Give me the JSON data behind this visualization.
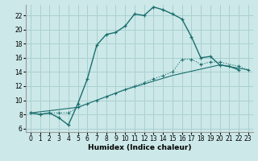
{
  "xlabel": "Humidex (Indice chaleur)",
  "bg_color": "#cce8e8",
  "grid_color": "#aad0d0",
  "line_color": "#1a6e6e",
  "line1_x": [
    0,
    1,
    2,
    3,
    4,
    5,
    6,
    7,
    8,
    9,
    10,
    11,
    12,
    13,
    14,
    15,
    16,
    17,
    18,
    19,
    20,
    21,
    22
  ],
  "line1_y": [
    8.2,
    8.0,
    8.2,
    7.5,
    6.5,
    9.5,
    13.0,
    17.8,
    19.3,
    19.6,
    20.5,
    22.2,
    22.0,
    23.2,
    22.8,
    22.2,
    21.5,
    19.0,
    16.0,
    16.2,
    15.0,
    14.8,
    14.3
  ],
  "line2_x": [
    0,
    1,
    2,
    3,
    4,
    5,
    6,
    7,
    8,
    9,
    10,
    11,
    12,
    13,
    14,
    15,
    16,
    17,
    18,
    19,
    20,
    22,
    23
  ],
  "line2_y": [
    8.2,
    8.0,
    8.2,
    8.2,
    8.2,
    9.0,
    9.5,
    10.0,
    10.5,
    11.0,
    11.5,
    12.0,
    12.5,
    13.0,
    13.5,
    14.0,
    15.8,
    15.8,
    15.1,
    15.4,
    15.4,
    14.8,
    14.3
  ],
  "line3_x": [
    0,
    5,
    10,
    15,
    20,
    23
  ],
  "line3_y": [
    8.2,
    9.0,
    11.5,
    13.5,
    15.0,
    14.3
  ],
  "xlim": [
    -0.5,
    23.5
  ],
  "ylim": [
    5.5,
    23.5
  ],
  "yticks": [
    6,
    8,
    10,
    12,
    14,
    16,
    18,
    20,
    22
  ],
  "xticks": [
    0,
    1,
    2,
    3,
    4,
    5,
    6,
    7,
    8,
    9,
    10,
    11,
    12,
    13,
    14,
    15,
    16,
    17,
    18,
    19,
    20,
    21,
    22,
    23
  ]
}
